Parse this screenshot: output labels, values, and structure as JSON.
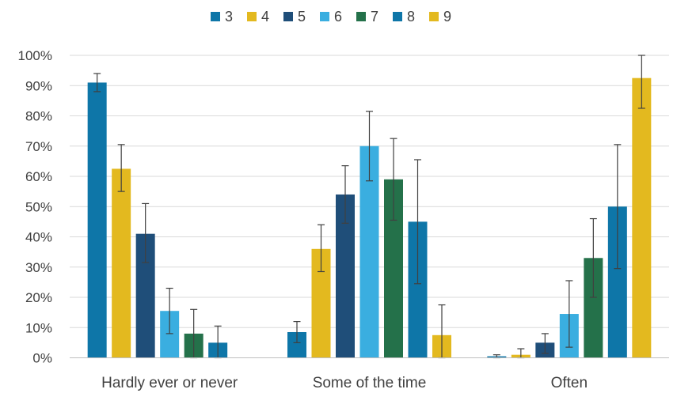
{
  "chart_data": {
    "type": "bar",
    "categories": [
      "Hardly ever or never",
      "Some of the time",
      "Often"
    ],
    "y_ticks": [
      "0%",
      "10%",
      "20%",
      "30%",
      "40%",
      "50%",
      "60%",
      "70%",
      "80%",
      "90%",
      "100%"
    ],
    "ylim": [
      0,
      100
    ],
    "grid": true,
    "legend_position": "top",
    "series": [
      {
        "name": "3",
        "color": "#0e76a8",
        "values": [
          91,
          8.5,
          0.5
        ],
        "err_low": [
          88,
          5,
          0
        ],
        "err_high": [
          94,
          12,
          1
        ]
      },
      {
        "name": "4",
        "color": "#e3b91f",
        "values": [
          62.5,
          36,
          1
        ],
        "err_low": [
          55,
          28.5,
          0
        ],
        "err_high": [
          70.5,
          44,
          3
        ]
      },
      {
        "name": "5",
        "color": "#1f4e79",
        "values": [
          41,
          54,
          5
        ],
        "err_low": [
          31.5,
          44.5,
          1.5
        ],
        "err_high": [
          51,
          63.5,
          8
        ]
      },
      {
        "name": "6",
        "color": "#3aaee0",
        "values": [
          15.5,
          70,
          14.5
        ],
        "err_low": [
          8,
          58.5,
          3.5
        ],
        "err_high": [
          23,
          81.5,
          25.5
        ]
      },
      {
        "name": "7",
        "color": "#24714a",
        "values": [
          8,
          59,
          33
        ],
        "err_low": [
          0,
          45.5,
          20
        ],
        "err_high": [
          16,
          72.5,
          46
        ]
      },
      {
        "name": "8",
        "color": "#0e76a8",
        "values": [
          5,
          45,
          50
        ],
        "err_low": [
          0,
          24.5,
          29.5
        ],
        "err_high": [
          10.5,
          65.5,
          70.5
        ]
      },
      {
        "name": "9",
        "color": "#e3b91f",
        "values": [
          0,
          7.5,
          92.5
        ],
        "err_low": [
          0,
          0,
          82.5
        ],
        "err_high": [
          0,
          17.5,
          100
        ]
      }
    ]
  }
}
